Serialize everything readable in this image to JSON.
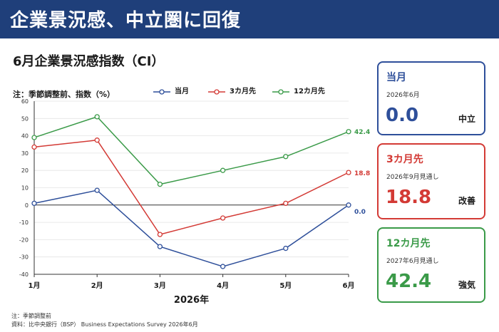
{
  "banner": {
    "title": "企業景況感、中立圏に回復"
  },
  "chart_heading": "6月企業景況感指数（CI）",
  "unit_note": "注：季節調整前、指数（%）",
  "colors": {
    "banner": "#1f3f7a",
    "blue": "#2e4f9a",
    "red": "#d33a35",
    "green": "#3a9a48"
  },
  "chart_data": {
    "type": "line",
    "title": "6月企業景況感指数（CI）",
    "xlabel": "2026年",
    "ylabel": "",
    "categories": [
      "1月",
      "2月",
      "3月",
      "4月",
      "5月",
      "6月"
    ],
    "ylim": [
      -40,
      60
    ],
    "yticks": [
      60,
      50,
      40,
      30,
      20,
      10,
      0,
      -10,
      -20,
      -30,
      -40
    ],
    "grid": true,
    "legend_position": "top",
    "series": [
      {
        "name": "当月",
        "color": "#2e4f9a",
        "values": [
          1,
          8.5,
          -24,
          -35.5,
          -25,
          0.0
        ],
        "end_label": "0.0"
      },
      {
        "name": "3カ月先",
        "color": "#d33a35",
        "values": [
          33.5,
          37.5,
          -17,
          -7.5,
          1,
          18.8
        ],
        "end_label": "18.8"
      },
      {
        "name": "12カ月先",
        "color": "#3a9a48",
        "values": [
          39,
          51,
          12,
          20,
          28,
          42.4
        ],
        "end_label": "42.4"
      }
    ]
  },
  "footnotes": [
    "注：季節調整前",
    "資料：比中央銀行（BSP） Business Expectations Survey 2026年6月"
  ],
  "cards": [
    {
      "title": "当月",
      "subtitle": "2026年6月",
      "value": "0.0",
      "status": "中立",
      "color": "#2e4f9a"
    },
    {
      "title": "3カ月先",
      "subtitle": "2026年9月見通し",
      "value": "18.8",
      "status": "改善",
      "color": "#d33a35"
    },
    {
      "title": "12カ月先",
      "subtitle": "2027年6月見通し",
      "value": "42.4",
      "status": "強気",
      "color": "#3a9a48"
    }
  ]
}
